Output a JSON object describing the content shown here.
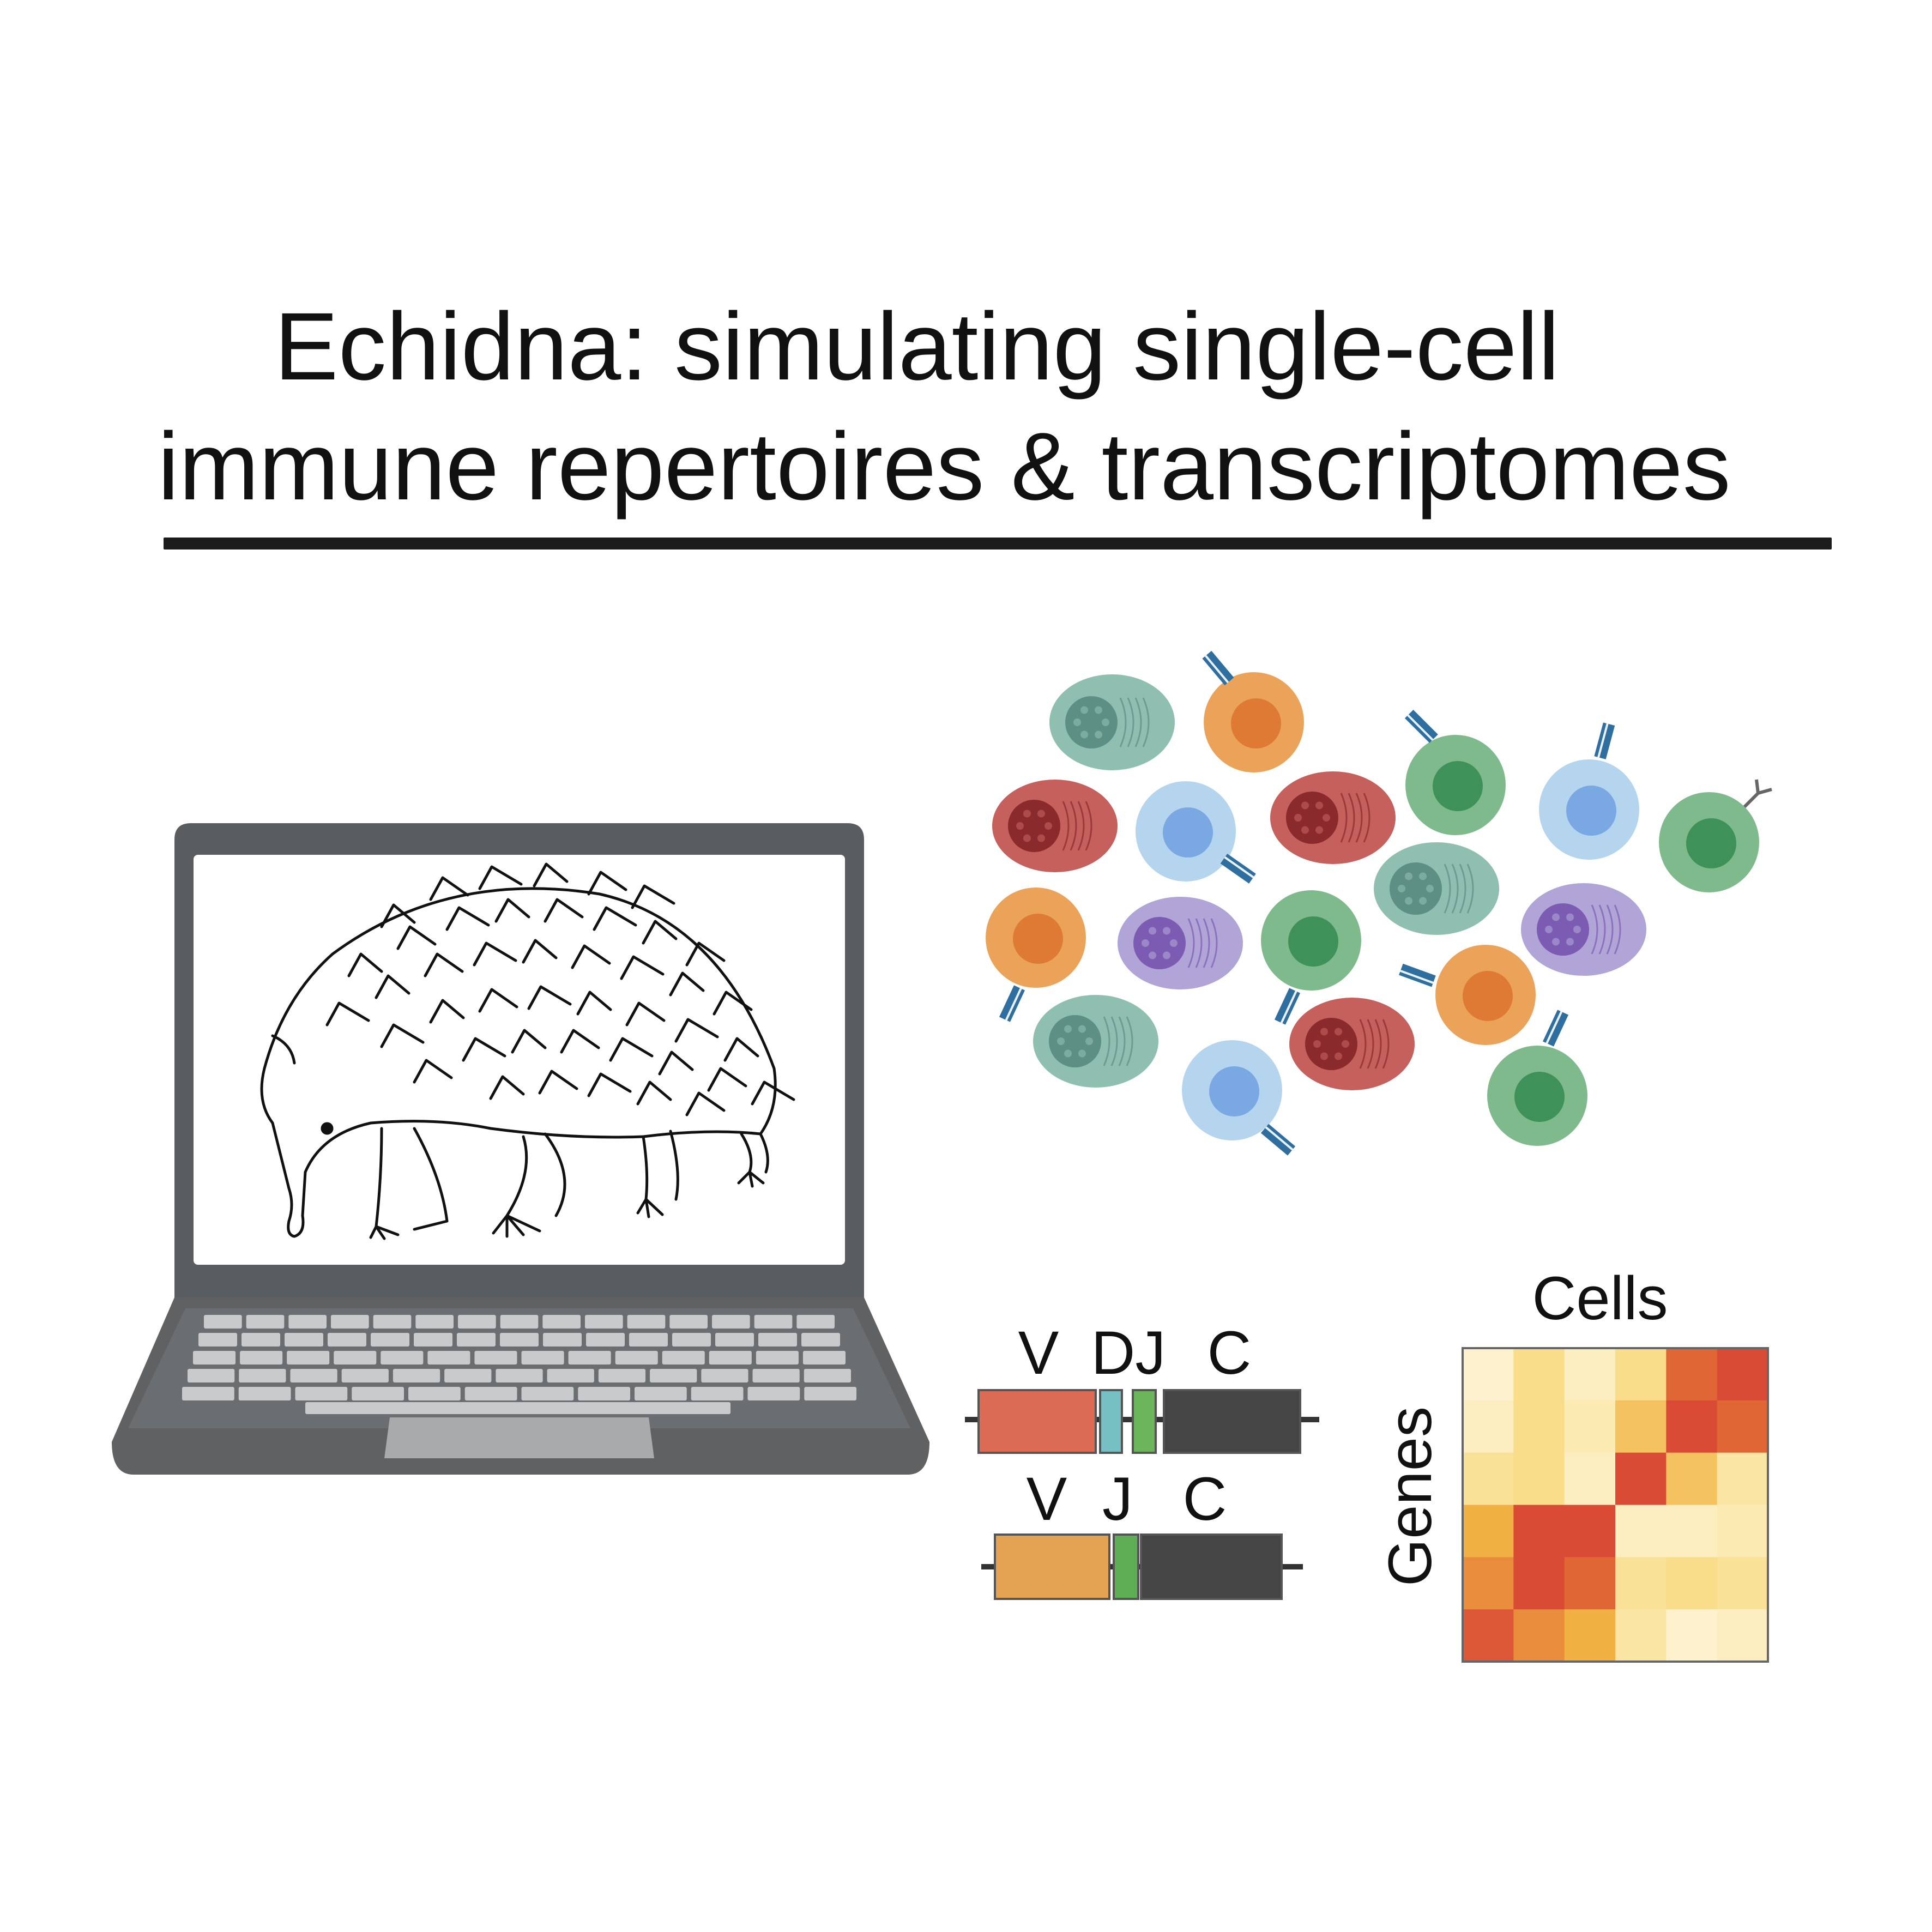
{
  "title": {
    "line1": "Echidna: simulating single-cell",
    "line2": "immune repertoires & transcriptomes"
  },
  "gene_segments": {
    "heavy": {
      "labels": [
        "V",
        "DJ",
        "C"
      ],
      "colors": [
        "#dc6b55",
        "#76bfc3",
        "#6db55a",
        "#454545"
      ]
    },
    "light": {
      "labels": [
        "V",
        "J",
        "C"
      ],
      "colors": [
        "#e3a353",
        "#5eae56",
        "#454545"
      ]
    }
  },
  "heatmap": {
    "xlabel": "Cells",
    "ylabel": "Genes",
    "rows": 6,
    "cols": 6,
    "matrix": [
      [
        0.05,
        0.3,
        0.1,
        0.3,
        0.85,
        0.95
      ],
      [
        0.1,
        0.3,
        0.15,
        0.45,
        0.95,
        0.85
      ],
      [
        0.25,
        0.3,
        0.1,
        0.95,
        0.45,
        0.2
      ],
      [
        0.55,
        0.95,
        0.95,
        0.1,
        0.1,
        0.15
      ],
      [
        0.7,
        0.95,
        0.85,
        0.25,
        0.3,
        0.25
      ],
      [
        0.9,
        0.7,
        0.55,
        0.2,
        0.05,
        0.1
      ]
    ]
  },
  "icons": [
    "laptop-icon",
    "echidna-icon",
    "immune-cell-icon"
  ],
  "cell_colors": {
    "teal": "#8fbfb0",
    "orange": "#eba35a",
    "green": "#7fba8c",
    "blue": "#b5d5ef",
    "red": "#c6605d",
    "purple": "#b0a5d6"
  }
}
